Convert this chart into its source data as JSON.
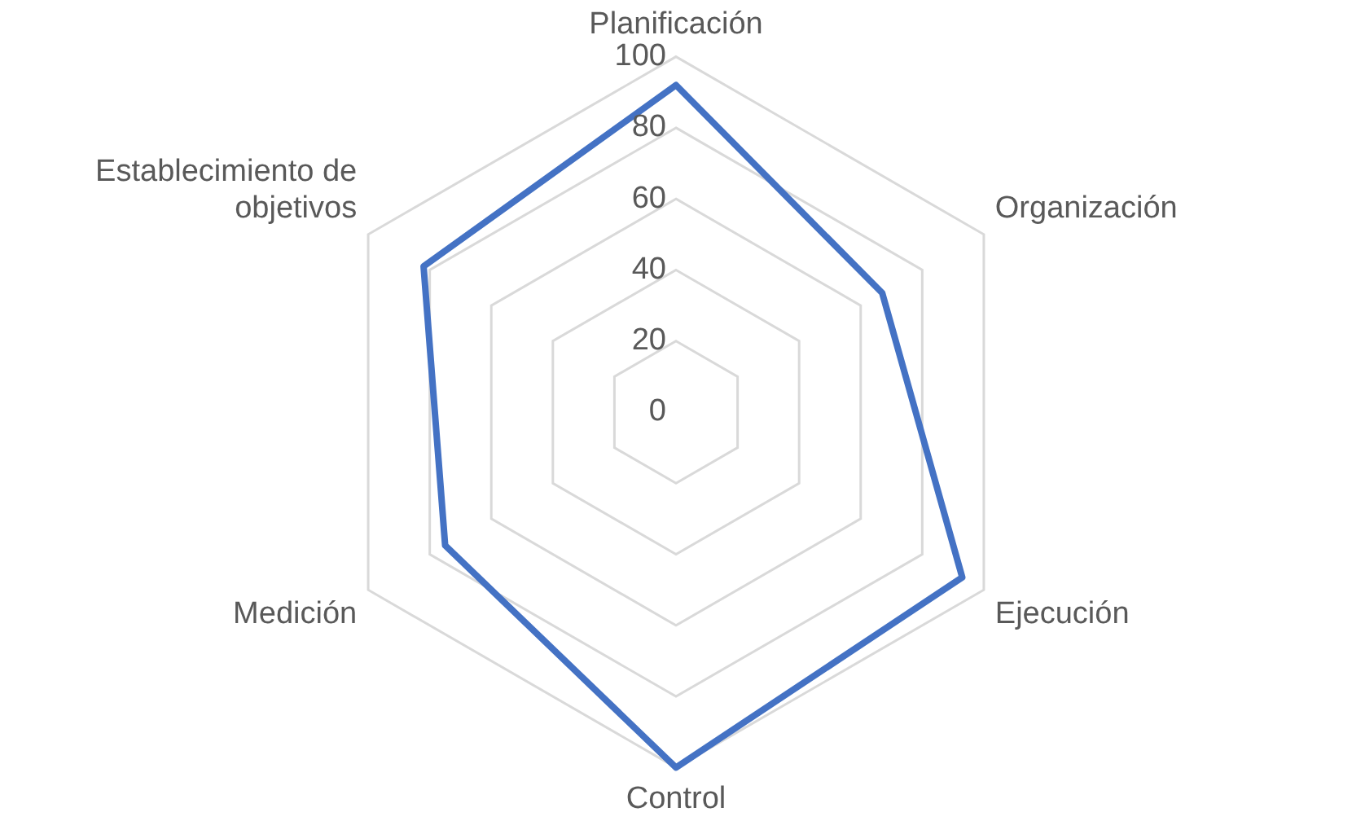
{
  "chart_data": {
    "type": "radar",
    "categories": [
      "Planificación",
      "Organización",
      "Ejecución",
      "Control",
      "Medición",
      "Establecimiento de objetivos"
    ],
    "series": [
      {
        "color": "#4472c4",
        "values": [
          92,
          67,
          93,
          100,
          75,
          82
        ]
      }
    ],
    "ylim": [
      0,
      100
    ],
    "yticks": [
      0,
      20,
      40,
      60,
      80,
      100
    ],
    "grid": true,
    "legend": false,
    "marker": "none"
  }
}
